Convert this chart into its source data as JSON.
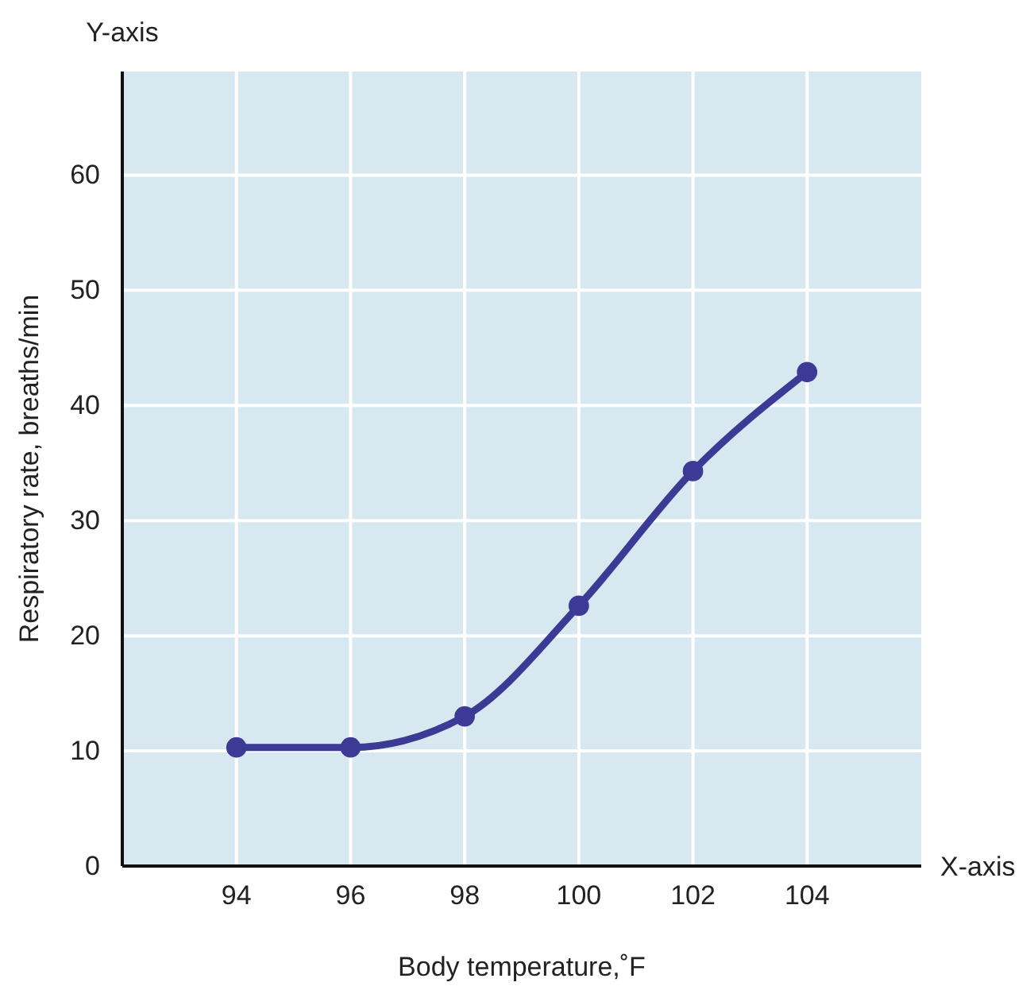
{
  "chart_data": {
    "type": "line",
    "xlabel": "Body temperature,˚F",
    "ylabel": "Respiratory rate, breaths/min",
    "annotations": [
      "Y-axis",
      "X-axis"
    ],
    "x": [
      94,
      96,
      98,
      100,
      102,
      104
    ],
    "series": [
      {
        "color": "#3b3b96",
        "values": [
          10.3,
          10.3,
          13,
          22.6,
          34.3,
          42.9
        ]
      }
    ],
    "xlim": [
      92,
      106
    ],
    "xticks": [
      94,
      96,
      98,
      100,
      102,
      104
    ],
    "ylim": [
      0,
      69
    ],
    "yticks": [
      0,
      10,
      20,
      30,
      40,
      50,
      60
    ],
    "grid": true,
    "marker": "circle",
    "line_style": "solid"
  }
}
